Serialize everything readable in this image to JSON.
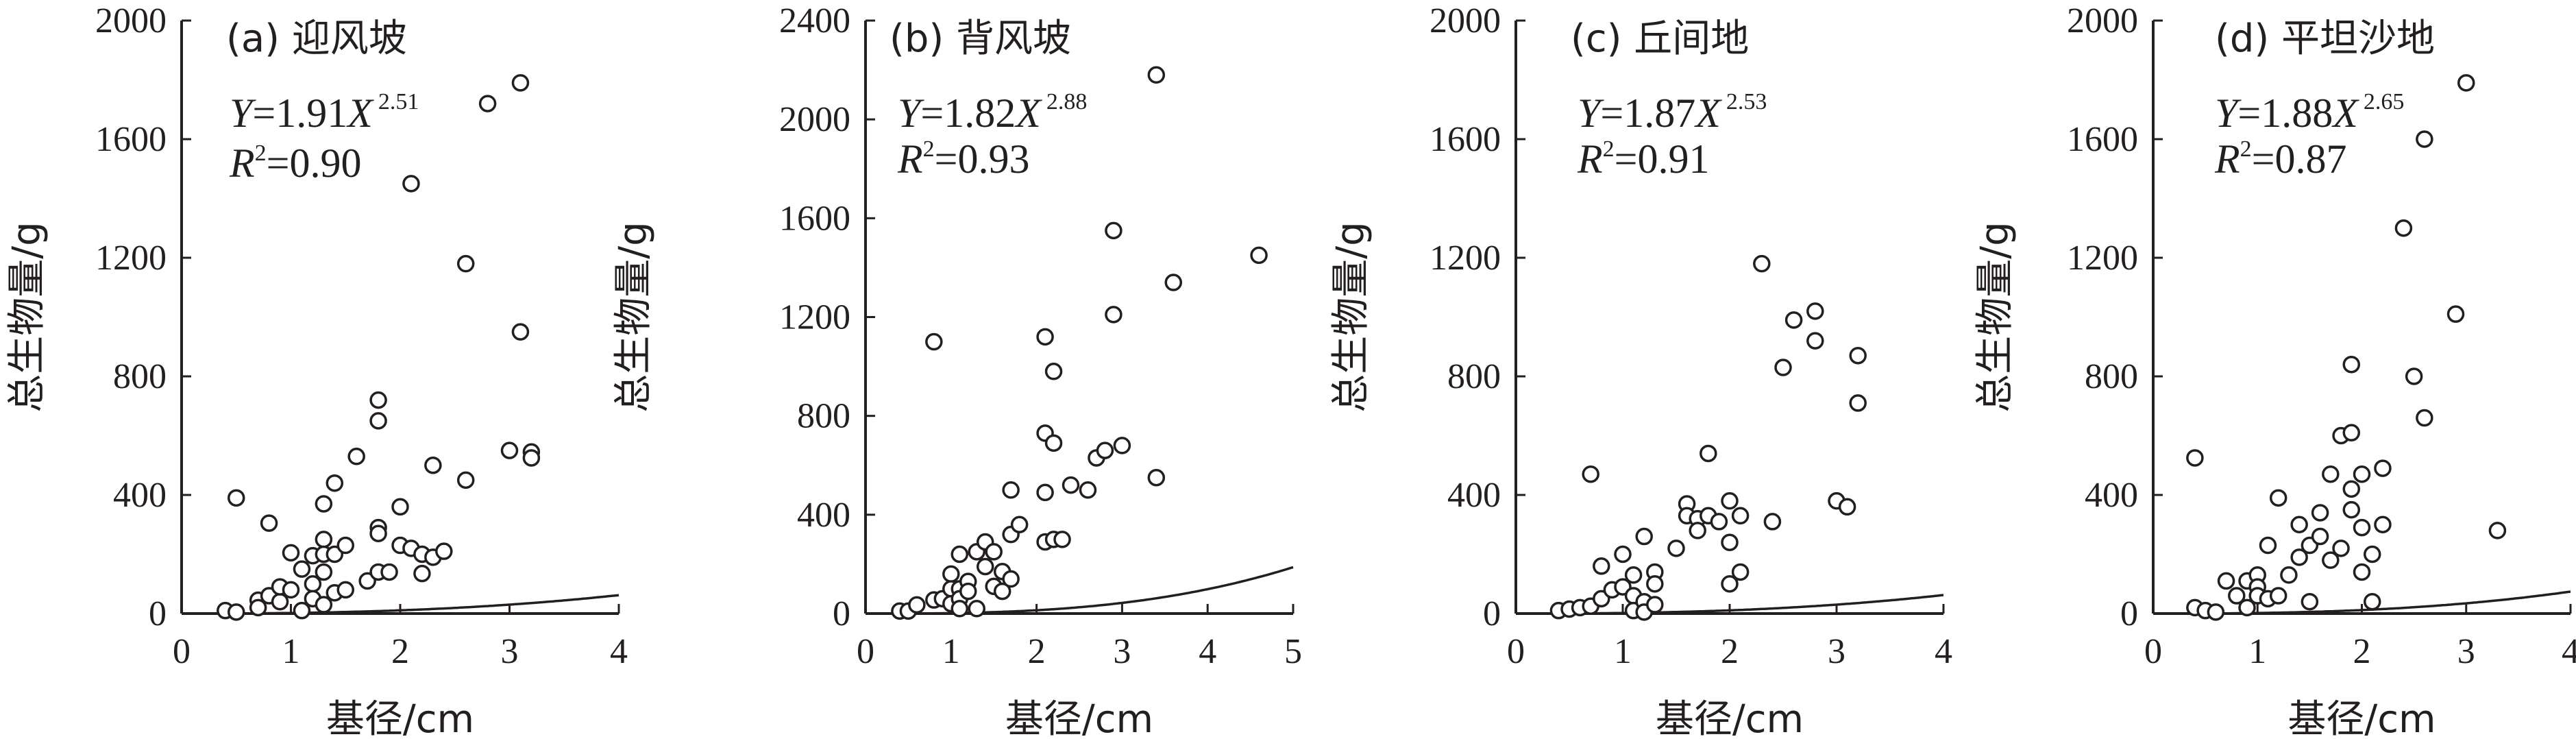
{
  "chart_data": [
    {
      "type": "scatter",
      "title": "(a) 迎风坡",
      "xlabel": "基径/cm",
      "ylabel": "总生物量/g",
      "xlim": [
        0,
        4
      ],
      "ylim": [
        0,
        2000
      ],
      "xticks": [
        "0",
        "1",
        "2",
        "3",
        "4"
      ],
      "yticks": [
        "0",
        "400",
        "800",
        "1200",
        "1600",
        "2000"
      ],
      "equation": {
        "prefix": "Y",
        "coef": "=1.91",
        "var": "X",
        "exp": "2.51",
        "a": 1.91,
        "b": 2.51
      },
      "r2": {
        "label": "R",
        "sup": "2",
        "value": "=0.90"
      },
      "points": [
        [
          0.4,
          10
        ],
        [
          0.5,
          5
        ],
        [
          0.5,
          390
        ],
        [
          0.7,
          45
        ],
        [
          0.7,
          20
        ],
        [
          0.8,
          60
        ],
        [
          0.8,
          305
        ],
        [
          0.9,
          40
        ],
        [
          0.9,
          90
        ],
        [
          1.0,
          205
        ],
        [
          1.0,
          80
        ],
        [
          1.1,
          150
        ],
        [
          1.1,
          10
        ],
        [
          1.2,
          195
        ],
        [
          1.2,
          100
        ],
        [
          1.2,
          50
        ],
        [
          1.3,
          250
        ],
        [
          1.3,
          200
        ],
        [
          1.3,
          370
        ],
        [
          1.3,
          140
        ],
        [
          1.3,
          30
        ],
        [
          1.4,
          440
        ],
        [
          1.4,
          200
        ],
        [
          1.4,
          70
        ],
        [
          1.5,
          230
        ],
        [
          1.5,
          80
        ],
        [
          1.6,
          530
        ],
        [
          1.7,
          110
        ],
        [
          1.8,
          720
        ],
        [
          1.8,
          650
        ],
        [
          1.8,
          290
        ],
        [
          1.8,
          270
        ],
        [
          1.8,
          140
        ],
        [
          1.9,
          140
        ],
        [
          2.0,
          360
        ],
        [
          2.0,
          230
        ],
        [
          2.1,
          1450
        ],
        [
          2.1,
          220
        ],
        [
          2.2,
          200
        ],
        [
          2.2,
          135
        ],
        [
          2.3,
          500
        ],
        [
          2.3,
          190
        ],
        [
          2.4,
          210
        ],
        [
          2.6,
          1180
        ],
        [
          2.6,
          450
        ],
        [
          2.8,
          1720
        ],
        [
          3.0,
          550
        ],
        [
          3.1,
          1790
        ],
        [
          3.1,
          950
        ],
        [
          3.2,
          545
        ],
        [
          3.2,
          525
        ]
      ]
    },
    {
      "type": "scatter",
      "title": "(b) 背风坡",
      "xlabel": "基径/cm",
      "ylabel": "总生物量/g",
      "xlim": [
        0,
        5
      ],
      "ylim": [
        0,
        2400
      ],
      "xticks": [
        "0",
        "1",
        "2",
        "3",
        "4",
        "5"
      ],
      "yticks": [
        "0",
        "400",
        "800",
        "1200",
        "1600",
        "2000",
        "2400"
      ],
      "equation": {
        "prefix": "Y",
        "coef": "=1.82",
        "var": "X",
        "exp": "2.88",
        "a": 1.82,
        "b": 2.88
      },
      "r2": {
        "label": "R",
        "sup": "2",
        "value": "=0.93"
      },
      "points": [
        [
          0.4,
          10
        ],
        [
          0.5,
          10
        ],
        [
          0.6,
          35
        ],
        [
          0.8,
          1100
        ],
        [
          0.8,
          55
        ],
        [
          0.9,
          60
        ],
        [
          1.0,
          160
        ],
        [
          1.0,
          100
        ],
        [
          1.0,
          40
        ],
        [
          1.1,
          240
        ],
        [
          1.1,
          100
        ],
        [
          1.1,
          60
        ],
        [
          1.1,
          20
        ],
        [
          1.2,
          130
        ],
        [
          1.2,
          90
        ],
        [
          1.3,
          250
        ],
        [
          1.3,
          20
        ],
        [
          1.4,
          290
        ],
        [
          1.4,
          190
        ],
        [
          1.5,
          250
        ],
        [
          1.5,
          110
        ],
        [
          1.6,
          170
        ],
        [
          1.6,
          90
        ],
        [
          1.7,
          500
        ],
        [
          1.7,
          320
        ],
        [
          1.7,
          140
        ],
        [
          1.8,
          360
        ],
        [
          2.1,
          1120
        ],
        [
          2.1,
          730
        ],
        [
          2.1,
          490
        ],
        [
          2.1,
          290
        ],
        [
          2.2,
          980
        ],
        [
          2.2,
          690
        ],
        [
          2.2,
          300
        ],
        [
          2.3,
          300
        ],
        [
          2.4,
          520
        ],
        [
          2.6,
          500
        ],
        [
          2.7,
          630
        ],
        [
          2.8,
          660
        ],
        [
          2.9,
          1550
        ],
        [
          2.9,
          1210
        ],
        [
          3.0,
          680
        ],
        [
          3.4,
          2180
        ],
        [
          3.4,
          550
        ],
        [
          3.6,
          1340
        ],
        [
          4.6,
          1450
        ]
      ]
    },
    {
      "type": "scatter",
      "title": "(c) 丘间地",
      "xlabel": "基径/cm",
      "ylabel": "总生物量/g",
      "xlim": [
        0,
        4
      ],
      "ylim": [
        0,
        2000
      ],
      "xticks": [
        "0",
        "1",
        "2",
        "3",
        "4"
      ],
      "yticks": [
        "0",
        "400",
        "800",
        "1200",
        "1600",
        "2000"
      ],
      "equation": {
        "prefix": "Y",
        "coef": "=1.87",
        "var": "X",
        "exp": "2.53",
        "a": 1.87,
        "b": 2.53
      },
      "r2": {
        "label": "R",
        "sup": "2",
        "value": "=0.91"
      },
      "points": [
        [
          0.4,
          10
        ],
        [
          0.5,
          15
        ],
        [
          0.6,
          20
        ],
        [
          0.7,
          470
        ],
        [
          0.7,
          25
        ],
        [
          0.8,
          160
        ],
        [
          0.8,
          50
        ],
        [
          0.9,
          80
        ],
        [
          1.0,
          90
        ],
        [
          1.0,
          200
        ],
        [
          1.1,
          130
        ],
        [
          1.1,
          60
        ],
        [
          1.1,
          10
        ],
        [
          1.2,
          260
        ],
        [
          1.2,
          40
        ],
        [
          1.2,
          5
        ],
        [
          1.3,
          140
        ],
        [
          1.3,
          100
        ],
        [
          1.3,
          30
        ],
        [
          1.5,
          220
        ],
        [
          1.6,
          370
        ],
        [
          1.6,
          330
        ],
        [
          1.7,
          320
        ],
        [
          1.7,
          280
        ],
        [
          1.8,
          540
        ],
        [
          1.8,
          330
        ],
        [
          1.9,
          310
        ],
        [
          2.0,
          380
        ],
        [
          2.0,
          240
        ],
        [
          2.0,
          100
        ],
        [
          2.1,
          330
        ],
        [
          2.1,
          140
        ],
        [
          2.3,
          1180
        ],
        [
          2.4,
          310
        ],
        [
          2.5,
          830
        ],
        [
          2.6,
          990
        ],
        [
          2.8,
          1020
        ],
        [
          2.8,
          920
        ],
        [
          3.0,
          380
        ],
        [
          3.1,
          360
        ],
        [
          3.2,
          870
        ],
        [
          3.2,
          710
        ]
      ]
    },
    {
      "type": "scatter",
      "title": "(d) 平坦沙地",
      "xlabel": "基径/cm",
      "ylabel": "总生物量/g",
      "xlim": [
        0,
        4
      ],
      "ylim": [
        0,
        2000
      ],
      "xticks": [
        "0",
        "1",
        "2",
        "3",
        "4"
      ],
      "yticks": [
        "0",
        "400",
        "800",
        "1200",
        "1600",
        "2000"
      ],
      "equation": {
        "prefix": "Y",
        "coef": "=1.88",
        "var": "X",
        "exp": "2.65",
        "a": 1.88,
        "b": 2.65
      },
      "r2": {
        "label": "R",
        "sup": "2",
        "value": "=0.87"
      },
      "points": [
        [
          0.4,
          525
        ],
        [
          0.4,
          20
        ],
        [
          0.5,
          10
        ],
        [
          0.6,
          5
        ],
        [
          0.7,
          110
        ],
        [
          0.8,
          60
        ],
        [
          0.9,
          110
        ],
        [
          0.9,
          20
        ],
        [
          1.0,
          130
        ],
        [
          1.0,
          90
        ],
        [
          1.0,
          60
        ],
        [
          1.1,
          230
        ],
        [
          1.1,
          50
        ],
        [
          1.2,
          390
        ],
        [
          1.2,
          60
        ],
        [
          1.3,
          130
        ],
        [
          1.4,
          300
        ],
        [
          1.4,
          190
        ],
        [
          1.5,
          230
        ],
        [
          1.5,
          40
        ],
        [
          1.6,
          340
        ],
        [
          1.6,
          260
        ],
        [
          1.7,
          470
        ],
        [
          1.7,
          180
        ],
        [
          1.8,
          600
        ],
        [
          1.8,
          220
        ],
        [
          1.9,
          610
        ],
        [
          1.9,
          420
        ],
        [
          1.9,
          350
        ],
        [
          1.9,
          840
        ],
        [
          2.0,
          470
        ],
        [
          2.0,
          290
        ],
        [
          2.0,
          140
        ],
        [
          2.1,
          200
        ],
        [
          2.1,
          40
        ],
        [
          2.2,
          490
        ],
        [
          2.2,
          300
        ],
        [
          2.4,
          1300
        ],
        [
          2.5,
          800
        ],
        [
          2.6,
          1600
        ],
        [
          2.6,
          660
        ],
        [
          2.9,
          1010
        ],
        [
          3.0,
          1790
        ],
        [
          3.3,
          280
        ]
      ]
    }
  ]
}
